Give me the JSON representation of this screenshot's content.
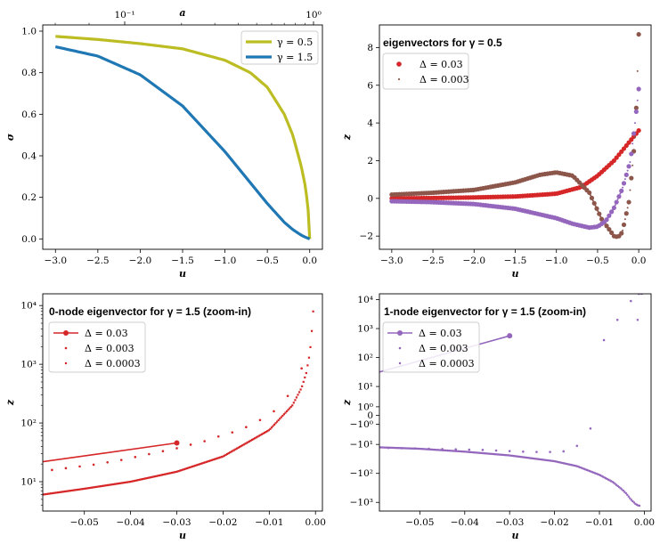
{
  "colors": {
    "olive": "#bcbd22",
    "blue": "#1f77b4",
    "red": "#d62728",
    "brown": "#8c564b",
    "purple": "#9467bd"
  },
  "chart_data": [
    {
      "type": "line",
      "title": "",
      "xlabel": "u",
      "ylabel": "σ",
      "top_xlabel": "a",
      "xlim": [
        -3.15,
        0.15
      ],
      "ylim": [
        -0.05,
        1.03
      ],
      "xticks": [
        "−3.0",
        "−2.5",
        "−2.0",
        "−1.5",
        "−1.0",
        "−0.5",
        "0.0"
      ],
      "yticks": [
        "0.0",
        "0.2",
        "0.4",
        "0.6",
        "0.8",
        "1.0"
      ],
      "top_xticks": [
        "10⁻¹",
        "10⁰"
      ],
      "legend_position": "top-right",
      "series": [
        {
          "name": "γ = 0.5",
          "color": "olive",
          "x": [
            -3.0,
            -2.5,
            -2.0,
            -1.5,
            -1.0,
            -0.7,
            -0.5,
            -0.3,
            -0.2,
            -0.1,
            -0.05,
            -0.02,
            0.0
          ],
          "y": [
            0.975,
            0.96,
            0.94,
            0.915,
            0.86,
            0.8,
            0.73,
            0.6,
            0.5,
            0.35,
            0.25,
            0.15,
            0.0
          ]
        },
        {
          "name": "γ = 1.5",
          "color": "blue",
          "x": [
            -3.0,
            -2.5,
            -2.0,
            -1.5,
            -1.0,
            -0.7,
            -0.5,
            -0.3,
            -0.2,
            -0.1,
            -0.05,
            0.0
          ],
          "y": [
            0.925,
            0.88,
            0.79,
            0.64,
            0.42,
            0.27,
            0.17,
            0.08,
            0.045,
            0.018,
            0.008,
            0.0
          ]
        }
      ]
    },
    {
      "type": "scatter",
      "title": "eigenvectors for γ = 0.5",
      "xlabel": "u",
      "ylabel": "z",
      "xlim": [
        -3.15,
        0.15
      ],
      "ylim": [
        -2.7,
        9.2
      ],
      "xticks": [
        "−3.0",
        "−2.5",
        "−2.0",
        "−1.5",
        "−1.0",
        "−0.5",
        "0.0"
      ],
      "yticks": [
        "−2",
        "0",
        "2",
        "4",
        "6",
        "8"
      ],
      "legend_position": "top-left",
      "legend": [
        "Δ = 0.03",
        "Δ = 0.003"
      ],
      "series": [
        {
          "name": "red branch",
          "color": "red",
          "x": [
            -3.0,
            -2.5,
            -2.0,
            -1.5,
            -1.0,
            -0.7,
            -0.5,
            -0.3,
            -0.15,
            0.0
          ],
          "y": [
            0.0,
            0.02,
            0.05,
            0.1,
            0.25,
            0.6,
            1.2,
            2.0,
            2.8,
            3.6
          ]
        },
        {
          "name": "brown branch",
          "color": "brown",
          "x": [
            -3.0,
            -2.5,
            -2.0,
            -1.5,
            -1.2,
            -1.0,
            -0.8,
            -0.6,
            -0.45,
            -0.3,
            -0.25,
            -0.2,
            -0.12,
            -0.08,
            -0.04,
            0.0
          ],
          "y": [
            0.2,
            0.3,
            0.45,
            0.85,
            1.25,
            1.38,
            1.2,
            0.3,
            -1.1,
            -2.0,
            -2.05,
            -1.8,
            -0.2,
            1.5,
            3.5,
            8.7
          ]
        },
        {
          "name": "purple branch",
          "color": "purple",
          "x": [
            -3.0,
            -2.5,
            -2.0,
            -1.5,
            -1.0,
            -0.8,
            -0.6,
            -0.5,
            -0.4,
            -0.3,
            -0.2,
            -0.1,
            -0.05,
            0.0
          ],
          "y": [
            -0.15,
            -0.2,
            -0.3,
            -0.55,
            -1.05,
            -1.35,
            -1.55,
            -1.5,
            -1.2,
            -0.5,
            0.5,
            2.0,
            3.8,
            5.8
          ]
        }
      ]
    },
    {
      "type": "scatter",
      "title": "0-node eigenvector for γ = 1.5 (zoom-in)",
      "xlabel": "u",
      "ylabel": "z",
      "yscale": "log",
      "xlim": [
        -0.059,
        0.0015
      ],
      "ylim_log10": [
        0.5,
        4.2
      ],
      "xticks": [
        "−0.05",
        "−0.04",
        "−0.03",
        "−0.02",
        "−0.01",
        "0.00"
      ],
      "yticks": [
        "10¹",
        "10²",
        "10³",
        "10⁴"
      ],
      "legend_position": "top-left",
      "legend": [
        "Δ = 0.03",
        "Δ = 0.003",
        "Δ = 0.0003"
      ],
      "series": [
        {
          "name": "Δ = 0.03",
          "color": "red",
          "x": [
            -0.059,
            -0.03
          ],
          "log10y": [
            1.34,
            1.66
          ]
        },
        {
          "name": "Δ = 0.003",
          "color": "red",
          "x": [
            -0.057,
            -0.054,
            -0.051,
            -0.048,
            -0.045,
            -0.042,
            -0.039,
            -0.036,
            -0.033,
            -0.03,
            -0.027,
            -0.024,
            -0.021,
            -0.018,
            -0.015,
            -0.012,
            -0.009,
            -0.006,
            -0.003
          ],
          "log10y": [
            1.2,
            1.23,
            1.26,
            1.29,
            1.33,
            1.37,
            1.42,
            1.47,
            1.52,
            1.57,
            1.63,
            1.69,
            1.77,
            1.84,
            1.93,
            2.05,
            2.2,
            2.46,
            2.93
          ]
        },
        {
          "name": "Δ = 0.0003",
          "color": "red",
          "x": [
            -0.059,
            -0.05,
            -0.04,
            -0.03,
            -0.02,
            -0.01,
            -0.005,
            -0.003,
            -0.002,
            -0.0012,
            -0.0006,
            -0.0003
          ],
          "log10y": [
            0.78,
            0.88,
            1.0,
            1.17,
            1.43,
            1.88,
            2.3,
            2.6,
            2.85,
            3.2,
            3.75,
            4.2
          ]
        }
      ]
    },
    {
      "type": "scatter",
      "title": "1-node eigenvector for γ = 1.5 (zoom-in)",
      "xlabel": "u",
      "ylabel": "z",
      "yscale": "symlog",
      "xlim": [
        -0.059,
        0.0015
      ],
      "ylim_symlog": [
        -3.3,
        4.2
      ],
      "xticks": [
        "−0.05",
        "−0.04",
        "−0.03",
        "−0.02",
        "−0.01",
        "0.00"
      ],
      "yticks": [
        "−10³",
        "−10²",
        "−10¹",
        "−10⁰",
        "0",
        "10⁰",
        "10¹",
        "10²",
        "10³",
        "10⁴"
      ],
      "legend_position": "top-left",
      "legend": [
        "Δ = 0.03",
        "Δ = 0.003",
        "Δ = 0.0003"
      ],
      "series": [
        {
          "name": "Δ = 0.03",
          "color": "purple",
          "x": [
            -0.059,
            -0.03
          ],
          "sy": [
            1.5,
            2.75
          ]
        },
        {
          "name": "Δ = 0.003",
          "color": "purple",
          "x": [
            -0.057,
            -0.054,
            -0.051,
            -0.048,
            -0.045,
            -0.042,
            -0.039,
            -0.036,
            -0.033,
            -0.03,
            -0.027,
            -0.024,
            -0.021,
            -0.018,
            -0.015,
            -0.012,
            -0.009,
            -0.006,
            -0.003,
            -0.0012
          ],
          "sy": [
            -1.12,
            -1.13,
            -1.14,
            -1.15,
            -1.16,
            -1.17,
            -1.18,
            -1.19,
            -1.21,
            -1.23,
            -1.25,
            -1.26,
            -1.26,
            -1.24,
            -1.05,
            -0.45,
            2.6,
            3.3,
            3.95,
            4.2
          ]
        },
        {
          "name": "Δ = 0.0003",
          "color": "purple",
          "x": [
            -0.059,
            -0.05,
            -0.04,
            -0.03,
            -0.02,
            -0.015,
            -0.01,
            -0.007,
            -0.005,
            -0.004,
            -0.003,
            -0.002,
            -0.0015,
            -0.001
          ],
          "sy": [
            -1.1,
            -1.15,
            -1.25,
            -1.38,
            -1.58,
            -1.75,
            -2.05,
            -2.3,
            -2.55,
            -2.7,
            -2.9,
            -3.05,
            -3.1,
            -3.12
          ]
        }
      ]
    }
  ]
}
